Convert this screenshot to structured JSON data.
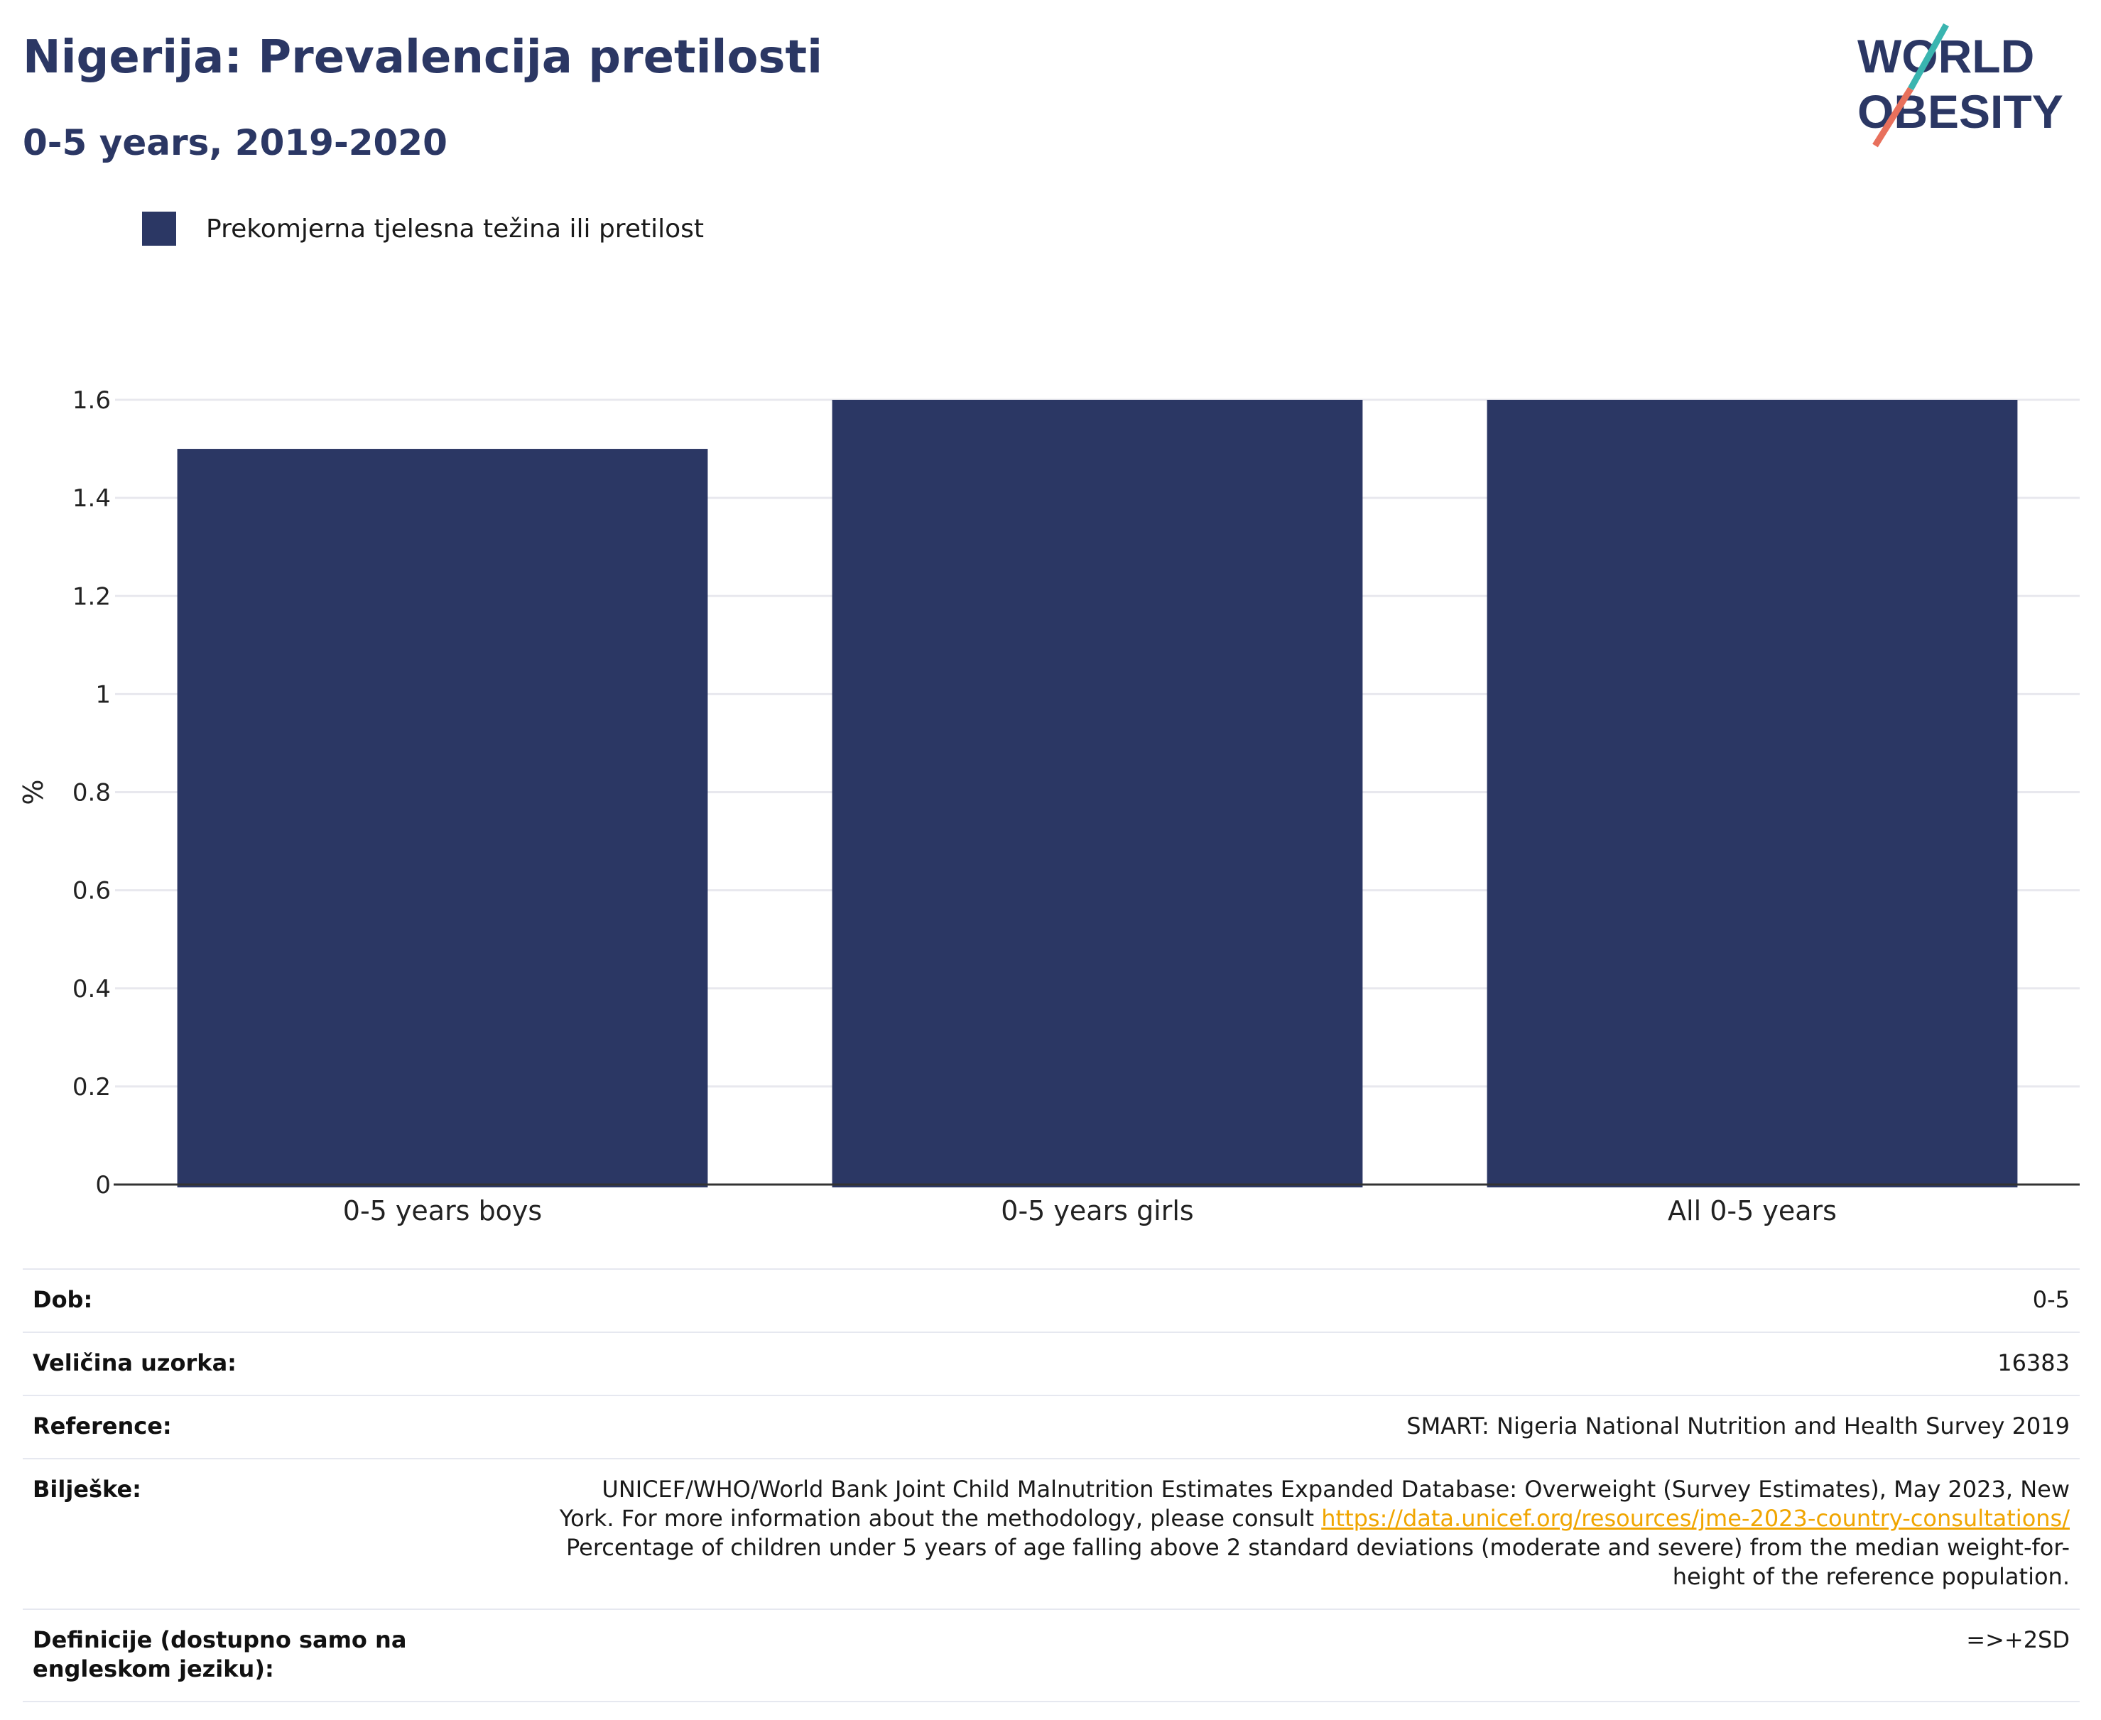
{
  "header": {
    "title": "Nigerija: Prevalencija pretilosti",
    "subtitle": "0-5 years, 2019-2020"
  },
  "logo": {
    "line1": "WORLD",
    "line2": "OBESITY"
  },
  "colors": {
    "bar": "#2b3764",
    "title": "#2b3764",
    "link": "#f0a500",
    "logo_slash_top": "#3ab5b0",
    "logo_slash_bottom": "#e8705c"
  },
  "chart_data": {
    "type": "bar",
    "categories": [
      "0-5 years boys",
      "0-5 years girls",
      "All 0-5 years"
    ],
    "series": [
      {
        "name": "Prekomjerna tjelesna težina ili pretilost",
        "values": [
          1.5,
          1.6,
          1.6
        ]
      }
    ],
    "ylabel": "%",
    "ylim": [
      0,
      1.6
    ],
    "yticks": [
      0,
      0.2,
      0.4,
      0.6,
      0.8,
      1,
      1.2,
      1.4,
      1.6
    ],
    "ytick_labels": [
      "0",
      "0.2",
      "0.4",
      "0.6",
      "0.8",
      "1",
      "1.2",
      "1.4",
      "1.6"
    ],
    "grid": true,
    "legend_position": "top-left"
  },
  "info": {
    "age_label": "Dob:",
    "age_value": "0-5",
    "sample_label": "Veličina uzorka:",
    "sample_value": "16383",
    "reference_label": "Reference:",
    "reference_value": "SMART: Nigeria National Nutrition and Health Survey 2019",
    "notes_label": "Bilješke:",
    "notes_text_1": "UNICEF/WHO/World Bank Joint Child Malnutrition Estimates Expanded Database: Overweight (Survey Estimates), May 2023, New York. For more information about the methodology, please consult",
    "notes_link": "https://data.unicef.org/resources/jme-2023-country-consultations/",
    "notes_text_2": "Percentage of children under 5 years of age falling above 2 standard deviations (moderate and severe) from the median weight-for-height of the reference population.",
    "definitions_label": "Definicije (dostupno samo na engleskom jeziku):",
    "definitions_value": "=>+2SD"
  }
}
